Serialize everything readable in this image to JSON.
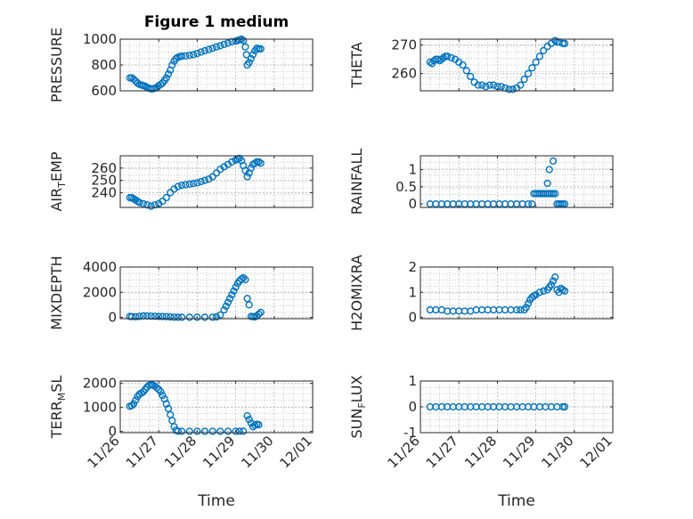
{
  "figure": {
    "title": "Figure 1 medium"
  },
  "colors": {
    "marker": "#0072BD",
    "axis": "#262626",
    "grid": "#b8b8b8"
  },
  "chart_data": [
    {
      "type": "scatter",
      "title": "Figure 1 medium",
      "ylabel": "PRESSURE",
      "xlabel": "",
      "xlim": [
        0,
        5
      ],
      "xticks": [
        "11/26",
        "11/27",
        "11/28",
        "11/29",
        "11/30",
        "12/01"
      ],
      "ylim": [
        600,
        1000
      ],
      "yticks": [
        "600",
        "800",
        "1000"
      ],
      "grid": true,
      "points": [
        [
          0.25,
          700
        ],
        [
          0.3,
          700
        ],
        [
          0.35,
          690
        ],
        [
          0.4,
          675
        ],
        [
          0.45,
          660
        ],
        [
          0.5,
          650
        ],
        [
          0.55,
          645
        ],
        [
          0.6,
          640
        ],
        [
          0.65,
          635
        ],
        [
          0.7,
          625
        ],
        [
          0.75,
          620
        ],
        [
          0.8,
          615
        ],
        [
          0.85,
          615
        ],
        [
          0.9,
          620
        ],
        [
          0.95,
          625
        ],
        [
          1.0,
          640
        ],
        [
          1.05,
          650
        ],
        [
          1.1,
          660
        ],
        [
          1.15,
          680
        ],
        [
          1.2,
          700
        ],
        [
          1.25,
          730
        ],
        [
          1.3,
          760
        ],
        [
          1.35,
          800
        ],
        [
          1.4,
          830
        ],
        [
          1.45,
          850
        ],
        [
          1.5,
          860
        ],
        [
          1.55,
          865
        ],
        [
          1.6,
          868
        ],
        [
          1.7,
          870
        ],
        [
          1.8,
          875
        ],
        [
          1.9,
          880
        ],
        [
          2.0,
          890
        ],
        [
          2.1,
          900
        ],
        [
          2.2,
          910
        ],
        [
          2.3,
          920
        ],
        [
          2.4,
          930
        ],
        [
          2.5,
          940
        ],
        [
          2.6,
          950
        ],
        [
          2.7,
          960
        ],
        [
          2.8,
          970
        ],
        [
          2.9,
          980
        ],
        [
          3.0,
          985
        ],
        [
          3.05,
          990
        ],
        [
          3.1,
          995
        ],
        [
          3.15,
          1000
        ],
        [
          3.2,
          990
        ],
        [
          3.25,
          940
        ],
        [
          3.28,
          880
        ],
        [
          3.3,
          800
        ],
        [
          3.35,
          820
        ],
        [
          3.4,
          850
        ],
        [
          3.45,
          880
        ],
        [
          3.5,
          910
        ],
        [
          3.55,
          930
        ],
        [
          3.6,
          925
        ],
        [
          3.65,
          925
        ]
      ]
    },
    {
      "type": "scatter",
      "ylabel": "THETA",
      "xlabel": "",
      "xlim": [
        0,
        5
      ],
      "xticks": [
        "11/26",
        "11/27",
        "11/28",
        "11/29",
        "11/30",
        "12/01"
      ],
      "ylim": [
        254,
        272
      ],
      "yticks": [
        "260",
        "270"
      ],
      "grid": true,
      "points": [
        [
          0.25,
          264
        ],
        [
          0.3,
          263.5
        ],
        [
          0.35,
          264.5
        ],
        [
          0.4,
          265
        ],
        [
          0.45,
          265
        ],
        [
          0.5,
          264.5
        ],
        [
          0.55,
          265
        ],
        [
          0.6,
          265.5
        ],
        [
          0.65,
          266
        ],
        [
          0.7,
          266
        ],
        [
          0.8,
          265.5
        ],
        [
          0.9,
          265
        ],
        [
          1.0,
          264
        ],
        [
          1.1,
          263
        ],
        [
          1.2,
          261
        ],
        [
          1.3,
          259
        ],
        [
          1.4,
          257
        ],
        [
          1.5,
          256
        ],
        [
          1.6,
          256
        ],
        [
          1.7,
          255.5
        ],
        [
          1.8,
          256
        ],
        [
          1.9,
          256
        ],
        [
          2.0,
          255.5
        ],
        [
          2.1,
          255.5
        ],
        [
          2.2,
          255
        ],
        [
          2.3,
          254.5
        ],
        [
          2.4,
          254.5
        ],
        [
          2.5,
          255
        ],
        [
          2.6,
          256
        ],
        [
          2.7,
          258
        ],
        [
          2.8,
          260
        ],
        [
          2.9,
          262
        ],
        [
          3.0,
          264
        ],
        [
          3.1,
          266
        ],
        [
          3.2,
          268
        ],
        [
          3.3,
          269.5
        ],
        [
          3.4,
          270.5
        ],
        [
          3.5,
          271.5
        ],
        [
          3.55,
          271
        ],
        [
          3.6,
          271
        ],
        [
          3.7,
          270.5
        ],
        [
          3.75,
          270.5
        ]
      ]
    },
    {
      "type": "scatter",
      "ylabel": "AIR_TEMP",
      "xlabel": "",
      "xlim": [
        0,
        5
      ],
      "xticks": [
        "11/26",
        "11/27",
        "11/28",
        "11/29",
        "11/30",
        "12/01"
      ],
      "ylim": [
        228,
        270
      ],
      "yticks": [
        "240",
        "250",
        "260"
      ],
      "grid": true,
      "points": [
        [
          0.25,
          236
        ],
        [
          0.3,
          236
        ],
        [
          0.35,
          235
        ],
        [
          0.4,
          234
        ],
        [
          0.45,
          233
        ],
        [
          0.5,
          232
        ],
        [
          0.6,
          231
        ],
        [
          0.7,
          230
        ],
        [
          0.8,
          229
        ],
        [
          0.9,
          230
        ],
        [
          1.0,
          231
        ],
        [
          1.1,
          233
        ],
        [
          1.2,
          236
        ],
        [
          1.3,
          240
        ],
        [
          1.4,
          243
        ],
        [
          1.5,
          245
        ],
        [
          1.6,
          246
        ],
        [
          1.7,
          246.5
        ],
        [
          1.8,
          247
        ],
        [
          1.9,
          247.5
        ],
        [
          2.0,
          248
        ],
        [
          2.1,
          249
        ],
        [
          2.2,
          250
        ],
        [
          2.3,
          251
        ],
        [
          2.4,
          253
        ],
        [
          2.5,
          256
        ],
        [
          2.6,
          259
        ],
        [
          2.7,
          261
        ],
        [
          2.8,
          263
        ],
        [
          2.9,
          265
        ],
        [
          3.0,
          266.5
        ],
        [
          3.05,
          267.5
        ],
        [
          3.1,
          268
        ],
        [
          3.15,
          266
        ],
        [
          3.2,
          262
        ],
        [
          3.25,
          258
        ],
        [
          3.3,
          253
        ],
        [
          3.35,
          256
        ],
        [
          3.4,
          260
        ],
        [
          3.45,
          263
        ],
        [
          3.5,
          264
        ],
        [
          3.55,
          265
        ],
        [
          3.6,
          265
        ],
        [
          3.65,
          264
        ]
      ]
    },
    {
      "type": "scatter",
      "ylabel": "RAINFALL",
      "xlabel": "",
      "xlim": [
        0,
        5
      ],
      "xticks": [
        "11/26",
        "11/27",
        "11/28",
        "11/29",
        "11/30",
        "12/01"
      ],
      "ylim": [
        -0.1,
        1.4
      ],
      "yticks": [
        "0",
        "0.5",
        "1"
      ],
      "grid": true,
      "points": [
        [
          0.25,
          0
        ],
        [
          0.4,
          0
        ],
        [
          0.55,
          0
        ],
        [
          0.7,
          0
        ],
        [
          0.85,
          0
        ],
        [
          1.0,
          0
        ],
        [
          1.15,
          0
        ],
        [
          1.3,
          0
        ],
        [
          1.45,
          0
        ],
        [
          1.6,
          0
        ],
        [
          1.75,
          0
        ],
        [
          1.9,
          0
        ],
        [
          2.05,
          0
        ],
        [
          2.2,
          0
        ],
        [
          2.35,
          0
        ],
        [
          2.5,
          0
        ],
        [
          2.65,
          0
        ],
        [
          2.8,
          0
        ],
        [
          2.9,
          0
        ],
        [
          2.95,
          0.3
        ],
        [
          3.0,
          0.3
        ],
        [
          3.05,
          0.3
        ],
        [
          3.1,
          0.3
        ],
        [
          3.15,
          0.3
        ],
        [
          3.2,
          0.3
        ],
        [
          3.25,
          0.3
        ],
        [
          3.3,
          0.3
        ],
        [
          3.35,
          0.3
        ],
        [
          3.4,
          0.3
        ],
        [
          3.45,
          0.3
        ],
        [
          3.5,
          0.3
        ],
        [
          3.3,
          0.6
        ],
        [
          3.35,
          1.0
        ],
        [
          3.45,
          1.25
        ],
        [
          3.55,
          0
        ],
        [
          3.6,
          0
        ],
        [
          3.65,
          0
        ],
        [
          3.7,
          0
        ],
        [
          3.75,
          0
        ]
      ]
    },
    {
      "type": "scatter",
      "ylabel": "MIXDEPTH",
      "xlabel": "",
      "xlim": [
        0,
        5
      ],
      "xticks": [
        "11/26",
        "11/27",
        "11/28",
        "11/29",
        "11/30",
        "12/01"
      ],
      "ylim": [
        -100,
        4000
      ],
      "yticks": [
        "0",
        "2000",
        "4000"
      ],
      "grid": true,
      "points": [
        [
          0.25,
          80
        ],
        [
          0.3,
          60
        ],
        [
          0.4,
          50
        ],
        [
          0.5,
          80
        ],
        [
          0.6,
          120
        ],
        [
          0.7,
          110
        ],
        [
          0.8,
          100
        ],
        [
          0.9,
          90
        ],
        [
          1.0,
          80
        ],
        [
          1.1,
          70
        ],
        [
          1.2,
          60
        ],
        [
          1.3,
          40
        ],
        [
          1.4,
          20
        ],
        [
          1.5,
          10
        ],
        [
          1.6,
          10
        ],
        [
          1.8,
          10
        ],
        [
          2.0,
          10
        ],
        [
          2.2,
          10
        ],
        [
          2.4,
          20
        ],
        [
          2.5,
          40
        ],
        [
          2.6,
          200
        ],
        [
          2.7,
          600
        ],
        [
          2.75,
          900
        ],
        [
          2.8,
          1200
        ],
        [
          2.85,
          1500
        ],
        [
          2.9,
          1800
        ],
        [
          2.95,
          2100
        ],
        [
          3.0,
          2400
        ],
        [
          3.05,
          2700
        ],
        [
          3.1,
          2900
        ],
        [
          3.15,
          3050
        ],
        [
          3.2,
          3150
        ],
        [
          3.25,
          3000
        ],
        [
          3.3,
          1500
        ],
        [
          3.35,
          1000
        ],
        [
          3.4,
          80
        ],
        [
          3.45,
          60
        ],
        [
          3.5,
          40
        ],
        [
          3.55,
          120
        ],
        [
          3.6,
          260
        ],
        [
          3.65,
          400
        ]
      ]
    },
    {
      "type": "scatter",
      "ylabel": "H2OMIXRA",
      "xlabel": "",
      "xlim": [
        0,
        5
      ],
      "xticks": [
        "11/26",
        "11/27",
        "11/28",
        "11/29",
        "11/30",
        "12/01"
      ],
      "ylim": [
        -0.05,
        2
      ],
      "yticks": [
        "0",
        "1",
        "2"
      ],
      "grid": true,
      "points": [
        [
          0.25,
          0.3
        ],
        [
          0.4,
          0.3
        ],
        [
          0.55,
          0.3
        ],
        [
          0.7,
          0.25
        ],
        [
          0.85,
          0.25
        ],
        [
          1.0,
          0.25
        ],
        [
          1.15,
          0.25
        ],
        [
          1.3,
          0.25
        ],
        [
          1.45,
          0.3
        ],
        [
          1.6,
          0.3
        ],
        [
          1.75,
          0.3
        ],
        [
          1.9,
          0.3
        ],
        [
          2.05,
          0.3
        ],
        [
          2.2,
          0.3
        ],
        [
          2.35,
          0.3
        ],
        [
          2.5,
          0.3
        ],
        [
          2.6,
          0.3
        ],
        [
          2.7,
          0.3
        ],
        [
          2.75,
          0.4
        ],
        [
          2.8,
          0.55
        ],
        [
          2.85,
          0.7
        ],
        [
          2.9,
          0.8
        ],
        [
          2.95,
          0.85
        ],
        [
          3.0,
          0.9
        ],
        [
          3.1,
          1.0
        ],
        [
          3.2,
          1.05
        ],
        [
          3.3,
          1.1
        ],
        [
          3.35,
          1.2
        ],
        [
          3.4,
          1.3
        ],
        [
          3.45,
          1.45
        ],
        [
          3.5,
          1.6
        ],
        [
          3.55,
          1.1
        ],
        [
          3.6,
          1.0
        ],
        [
          3.65,
          1.15
        ],
        [
          3.7,
          1.1
        ],
        [
          3.75,
          1.05
        ]
      ]
    },
    {
      "type": "scatter",
      "ylabel": "TERR_MSL",
      "xlabel": "Time",
      "xlim": [
        0,
        5
      ],
      "xticks": [
        "11/26",
        "11/27",
        "11/28",
        "11/29",
        "11/30",
        "12/01"
      ],
      "ylim": [
        -50,
        2100
      ],
      "yticks": [
        "0",
        "1000",
        "2000"
      ],
      "grid": true,
      "points": [
        [
          0.25,
          1050
        ],
        [
          0.3,
          1080
        ],
        [
          0.35,
          1150
        ],
        [
          0.4,
          1300
        ],
        [
          0.45,
          1450
        ],
        [
          0.5,
          1550
        ],
        [
          0.55,
          1600
        ],
        [
          0.6,
          1650
        ],
        [
          0.65,
          1750
        ],
        [
          0.7,
          1850
        ],
        [
          0.75,
          1920
        ],
        [
          0.8,
          1950
        ],
        [
          0.85,
          1930
        ],
        [
          0.9,
          1880
        ],
        [
          0.95,
          1820
        ],
        [
          1.0,
          1750
        ],
        [
          1.05,
          1650
        ],
        [
          1.1,
          1500
        ],
        [
          1.15,
          1350
        ],
        [
          1.2,
          1150
        ],
        [
          1.25,
          950
        ],
        [
          1.3,
          700
        ],
        [
          1.35,
          450
        ],
        [
          1.4,
          200
        ],
        [
          1.45,
          50
        ],
        [
          1.5,
          10
        ],
        [
          1.6,
          5
        ],
        [
          1.8,
          5
        ],
        [
          2.0,
          5
        ],
        [
          2.2,
          5
        ],
        [
          2.4,
          5
        ],
        [
          2.6,
          5
        ],
        [
          2.8,
          5
        ],
        [
          3.0,
          5
        ],
        [
          3.1,
          5
        ],
        [
          3.2,
          10
        ],
        [
          3.3,
          650
        ],
        [
          3.35,
          500
        ],
        [
          3.4,
          350
        ],
        [
          3.45,
          200
        ],
        [
          3.5,
          250
        ],
        [
          3.55,
          300
        ],
        [
          3.6,
          280
        ]
      ]
    },
    {
      "type": "scatter",
      "ylabel": "SUN_FLUX",
      "xlabel": "Time",
      "xlim": [
        0,
        5
      ],
      "xticks": [
        "11/26",
        "11/27",
        "11/28",
        "11/29",
        "11/30",
        "12/01"
      ],
      "ylim": [
        -1,
        1
      ],
      "yticks": [
        "-1",
        "0",
        "1"
      ],
      "grid": true,
      "points": [
        [
          0.25,
          0
        ],
        [
          0.4,
          0
        ],
        [
          0.55,
          0
        ],
        [
          0.7,
          0
        ],
        [
          0.85,
          0
        ],
        [
          1.0,
          0
        ],
        [
          1.15,
          0
        ],
        [
          1.3,
          0
        ],
        [
          1.45,
          0
        ],
        [
          1.6,
          0
        ],
        [
          1.75,
          0
        ],
        [
          1.9,
          0
        ],
        [
          2.05,
          0
        ],
        [
          2.2,
          0
        ],
        [
          2.35,
          0
        ],
        [
          2.5,
          0
        ],
        [
          2.65,
          0
        ],
        [
          2.8,
          0
        ],
        [
          2.95,
          0
        ],
        [
          3.1,
          0
        ],
        [
          3.25,
          0
        ],
        [
          3.4,
          0
        ],
        [
          3.55,
          0
        ],
        [
          3.7,
          0
        ],
        [
          3.75,
          0
        ]
      ]
    }
  ]
}
